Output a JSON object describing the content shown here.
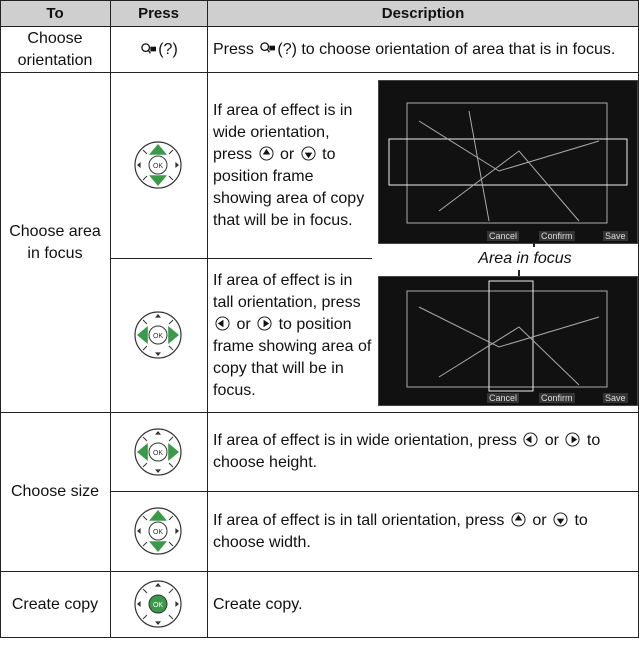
{
  "header": {
    "to": "To",
    "press": "Press",
    "description": "Description"
  },
  "rows": [
    {
      "to": "Choose orientation",
      "press": "(?)",
      "description": [
        "Press",
        "(?) to choose orientation of area that is in focus."
      ]
    },
    {
      "to": "Choose area in focus",
      "steps": [
        {
          "description": [
            "If area of effect is in wide orientation, press",
            "or",
            "to position frame showing area of copy that will be in focus."
          ]
        },
        {
          "description": [
            "If area of effect is in tall orientation, press",
            "or",
            "to position frame showing area of copy that will be in focus."
          ]
        }
      ],
      "caption": "Area in focus",
      "screen_buttons": [
        "Cancel",
        "Confirm",
        "Save"
      ]
    },
    {
      "to": "Choose size",
      "steps": [
        {
          "description": [
            "If area of effect is in wide orientation, press",
            "or",
            "to choose height."
          ]
        },
        {
          "description": [
            "If area of effect is in tall orientation, press",
            "or",
            "to choose width."
          ]
        }
      ]
    },
    {
      "to": "Create copy",
      "description": "Create copy."
    }
  ]
}
